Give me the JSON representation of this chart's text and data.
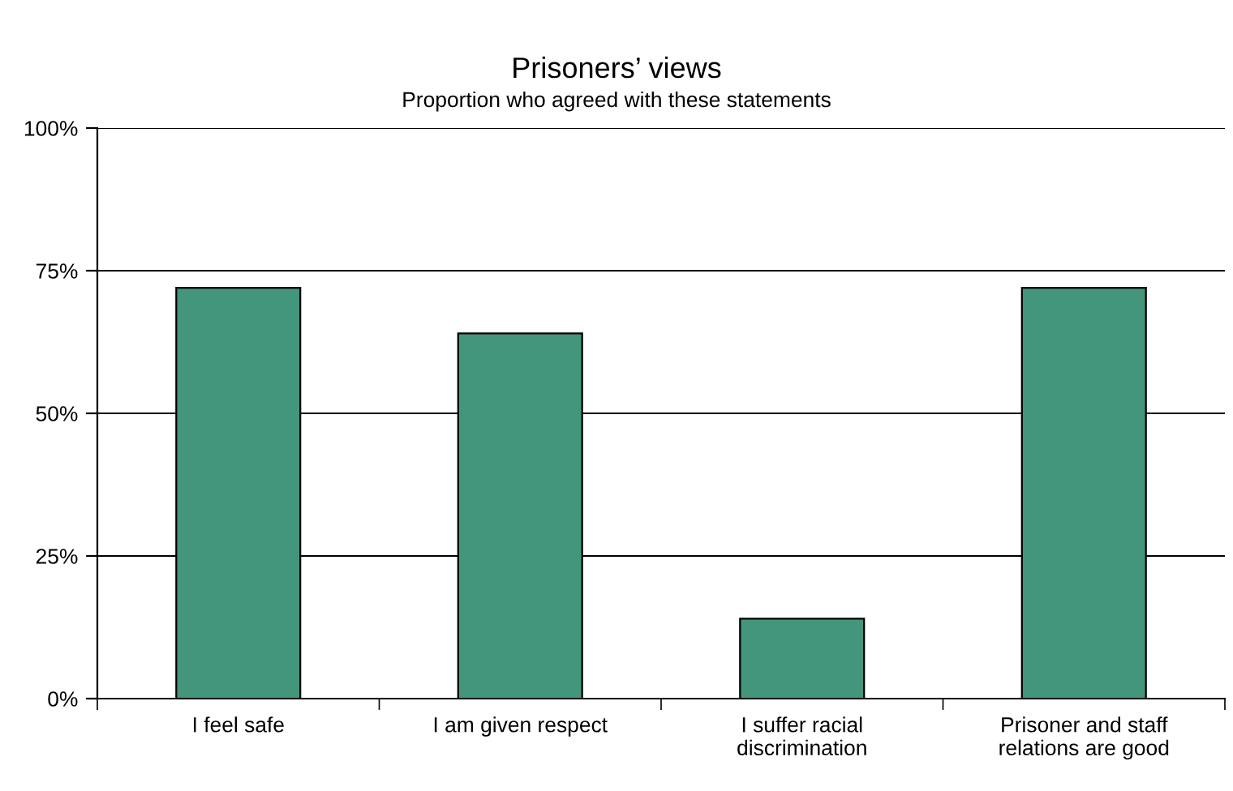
{
  "chart_data": {
    "type": "bar",
    "title": "Prisoners’ views",
    "subtitle": "Proportion who agreed with these statements",
    "categories": [
      "I feel safe",
      "I am given respect",
      "I suffer racial\ndiscrimination",
      "Prisoner and staff\nrelations are good"
    ],
    "values": [
      72,
      64,
      14,
      72
    ],
    "color": "#43957b",
    "ylim": [
      0,
      100
    ],
    "yticks": [
      {
        "value": 0,
        "label": "0%"
      },
      {
        "value": 25,
        "label": "25%"
      },
      {
        "value": 50,
        "label": "50%"
      },
      {
        "value": 75,
        "label": "75%"
      },
      {
        "value": 100,
        "label": "100%"
      }
    ],
    "grid": "y",
    "legend": false
  }
}
